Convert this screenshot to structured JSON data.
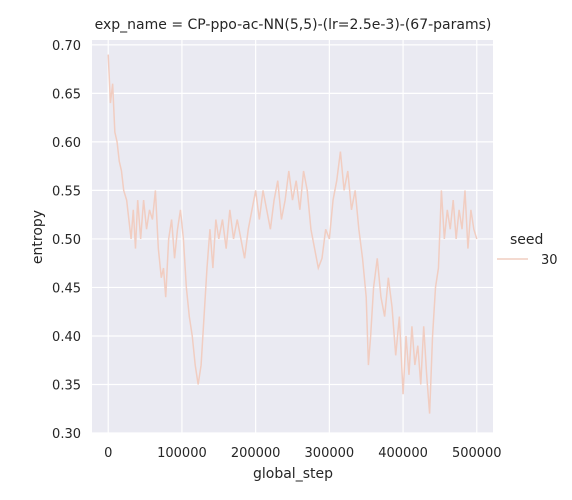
{
  "chart_data": {
    "type": "line",
    "title": "exp_name = CP-ppo-ac-NN(5,5)-(lr=2.5e-3)-(67-params)",
    "xlabel": "global_step",
    "ylabel": "entropy",
    "xlim": [
      -22000,
      522000
    ],
    "ylim": [
      0.3,
      0.705
    ],
    "xticks": [
      0,
      100000,
      200000,
      300000,
      400000,
      500000
    ],
    "yticks": [
      0.3,
      0.35,
      0.4,
      0.45,
      0.5,
      0.55,
      0.6,
      0.65,
      0.7
    ],
    "xtick_labels": [
      "0",
      "100000",
      "200000",
      "300000",
      "400000",
      "500000"
    ],
    "ytick_labels": [
      "0.30",
      "0.35",
      "0.40",
      "0.45",
      "0.50",
      "0.55",
      "0.60",
      "0.65",
      "0.70"
    ],
    "grid": true,
    "legend": {
      "title": "seed",
      "position": "right"
    },
    "series": [
      {
        "name": "30",
        "color": "#f1cdc1",
        "points": [
          [
            0,
            0.69
          ],
          [
            3000,
            0.64
          ],
          [
            6000,
            0.66
          ],
          [
            9000,
            0.61
          ],
          [
            12000,
            0.6
          ],
          [
            15000,
            0.58
          ],
          [
            18000,
            0.57
          ],
          [
            21000,
            0.55
          ],
          [
            25000,
            0.54
          ],
          [
            28000,
            0.52
          ],
          [
            31000,
            0.5
          ],
          [
            34000,
            0.53
          ],
          [
            37000,
            0.49
          ],
          [
            40000,
            0.54
          ],
          [
            44000,
            0.5
          ],
          [
            48000,
            0.54
          ],
          [
            52000,
            0.51
          ],
          [
            56000,
            0.53
          ],
          [
            60000,
            0.52
          ],
          [
            64000,
            0.55
          ],
          [
            68000,
            0.49
          ],
          [
            72000,
            0.46
          ],
          [
            75000,
            0.47
          ],
          [
            78000,
            0.44
          ],
          [
            82000,
            0.5
          ],
          [
            86000,
            0.52
          ],
          [
            90000,
            0.48
          ],
          [
            94000,
            0.51
          ],
          [
            98000,
            0.53
          ],
          [
            102000,
            0.5
          ],
          [
            106000,
            0.45
          ],
          [
            110000,
            0.42
          ],
          [
            114000,
            0.4
          ],
          [
            118000,
            0.37
          ],
          [
            122000,
            0.35
          ],
          [
            126000,
            0.37
          ],
          [
            130000,
            0.42
          ],
          [
            134000,
            0.47
          ],
          [
            138000,
            0.51
          ],
          [
            142000,
            0.47
          ],
          [
            146000,
            0.52
          ],
          [
            150000,
            0.5
          ],
          [
            155000,
            0.52
          ],
          [
            160000,
            0.49
          ],
          [
            165000,
            0.53
          ],
          [
            170000,
            0.5
          ],
          [
            175000,
            0.52
          ],
          [
            180000,
            0.5
          ],
          [
            185000,
            0.48
          ],
          [
            190000,
            0.51
          ],
          [
            195000,
            0.53
          ],
          [
            200000,
            0.55
          ],
          [
            205000,
            0.52
          ],
          [
            210000,
            0.55
          ],
          [
            215000,
            0.53
          ],
          [
            220000,
            0.51
          ],
          [
            225000,
            0.54
          ],
          [
            230000,
            0.56
          ],
          [
            235000,
            0.52
          ],
          [
            240000,
            0.54
          ],
          [
            245000,
            0.57
          ],
          [
            250000,
            0.54
          ],
          [
            255000,
            0.56
          ],
          [
            260000,
            0.53
          ],
          [
            265000,
            0.57
          ],
          [
            270000,
            0.55
          ],
          [
            275000,
            0.51
          ],
          [
            280000,
            0.49
          ],
          [
            285000,
            0.47
          ],
          [
            290000,
            0.48
          ],
          [
            295000,
            0.51
          ],
          [
            300000,
            0.5
          ],
          [
            305000,
            0.54
          ],
          [
            310000,
            0.56
          ],
          [
            315000,
            0.59
          ],
          [
            320000,
            0.55
          ],
          [
            325000,
            0.57
          ],
          [
            330000,
            0.53
          ],
          [
            335000,
            0.55
          ],
          [
            340000,
            0.51
          ],
          [
            345000,
            0.48
          ],
          [
            350000,
            0.44
          ],
          [
            353000,
            0.37
          ],
          [
            356000,
            0.4
          ],
          [
            360000,
            0.45
          ],
          [
            365000,
            0.48
          ],
          [
            370000,
            0.44
          ],
          [
            375000,
            0.42
          ],
          [
            380000,
            0.46
          ],
          [
            385000,
            0.43
          ],
          [
            390000,
            0.38
          ],
          [
            395000,
            0.42
          ],
          [
            400000,
            0.34
          ],
          [
            404000,
            0.4
          ],
          [
            408000,
            0.36
          ],
          [
            412000,
            0.41
          ],
          [
            416000,
            0.37
          ],
          [
            420000,
            0.39
          ],
          [
            424000,
            0.35
          ],
          [
            428000,
            0.41
          ],
          [
            432000,
            0.36
          ],
          [
            436000,
            0.32
          ],
          [
            440000,
            0.4
          ],
          [
            444000,
            0.45
          ],
          [
            448000,
            0.47
          ],
          [
            452000,
            0.55
          ],
          [
            456000,
            0.5
          ],
          [
            460000,
            0.53
          ],
          [
            464000,
            0.51
          ],
          [
            468000,
            0.54
          ],
          [
            472000,
            0.5
          ],
          [
            476000,
            0.53
          ],
          [
            480000,
            0.51
          ],
          [
            484000,
            0.55
          ],
          [
            488000,
            0.49
          ],
          [
            492000,
            0.53
          ],
          [
            496000,
            0.51
          ],
          [
            500000,
            0.5
          ]
        ]
      }
    ]
  }
}
